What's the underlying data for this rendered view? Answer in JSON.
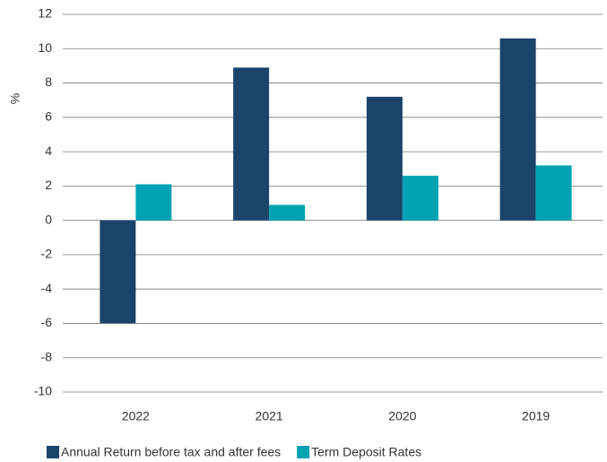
{
  "chart_data": {
    "type": "bar",
    "y_label": "%",
    "categories": [
      "2022",
      "2021",
      "2020",
      "2019"
    ],
    "series": [
      {
        "name": "Annual Return before tax and after fees",
        "color": "#1b446b",
        "values": [
          -6.0,
          8.9,
          7.2,
          10.6
        ]
      },
      {
        "name": "Term Deposit Rates",
        "color": "#00a3b4",
        "values": [
          2.1,
          0.9,
          2.6,
          3.2
        ]
      }
    ],
    "ylim": [
      -10,
      12
    ],
    "yticks": [
      -10,
      -8,
      -6,
      -4,
      -2,
      0,
      2,
      4,
      6,
      8,
      10,
      12
    ],
    "grid": true,
    "legend": "bottom"
  }
}
